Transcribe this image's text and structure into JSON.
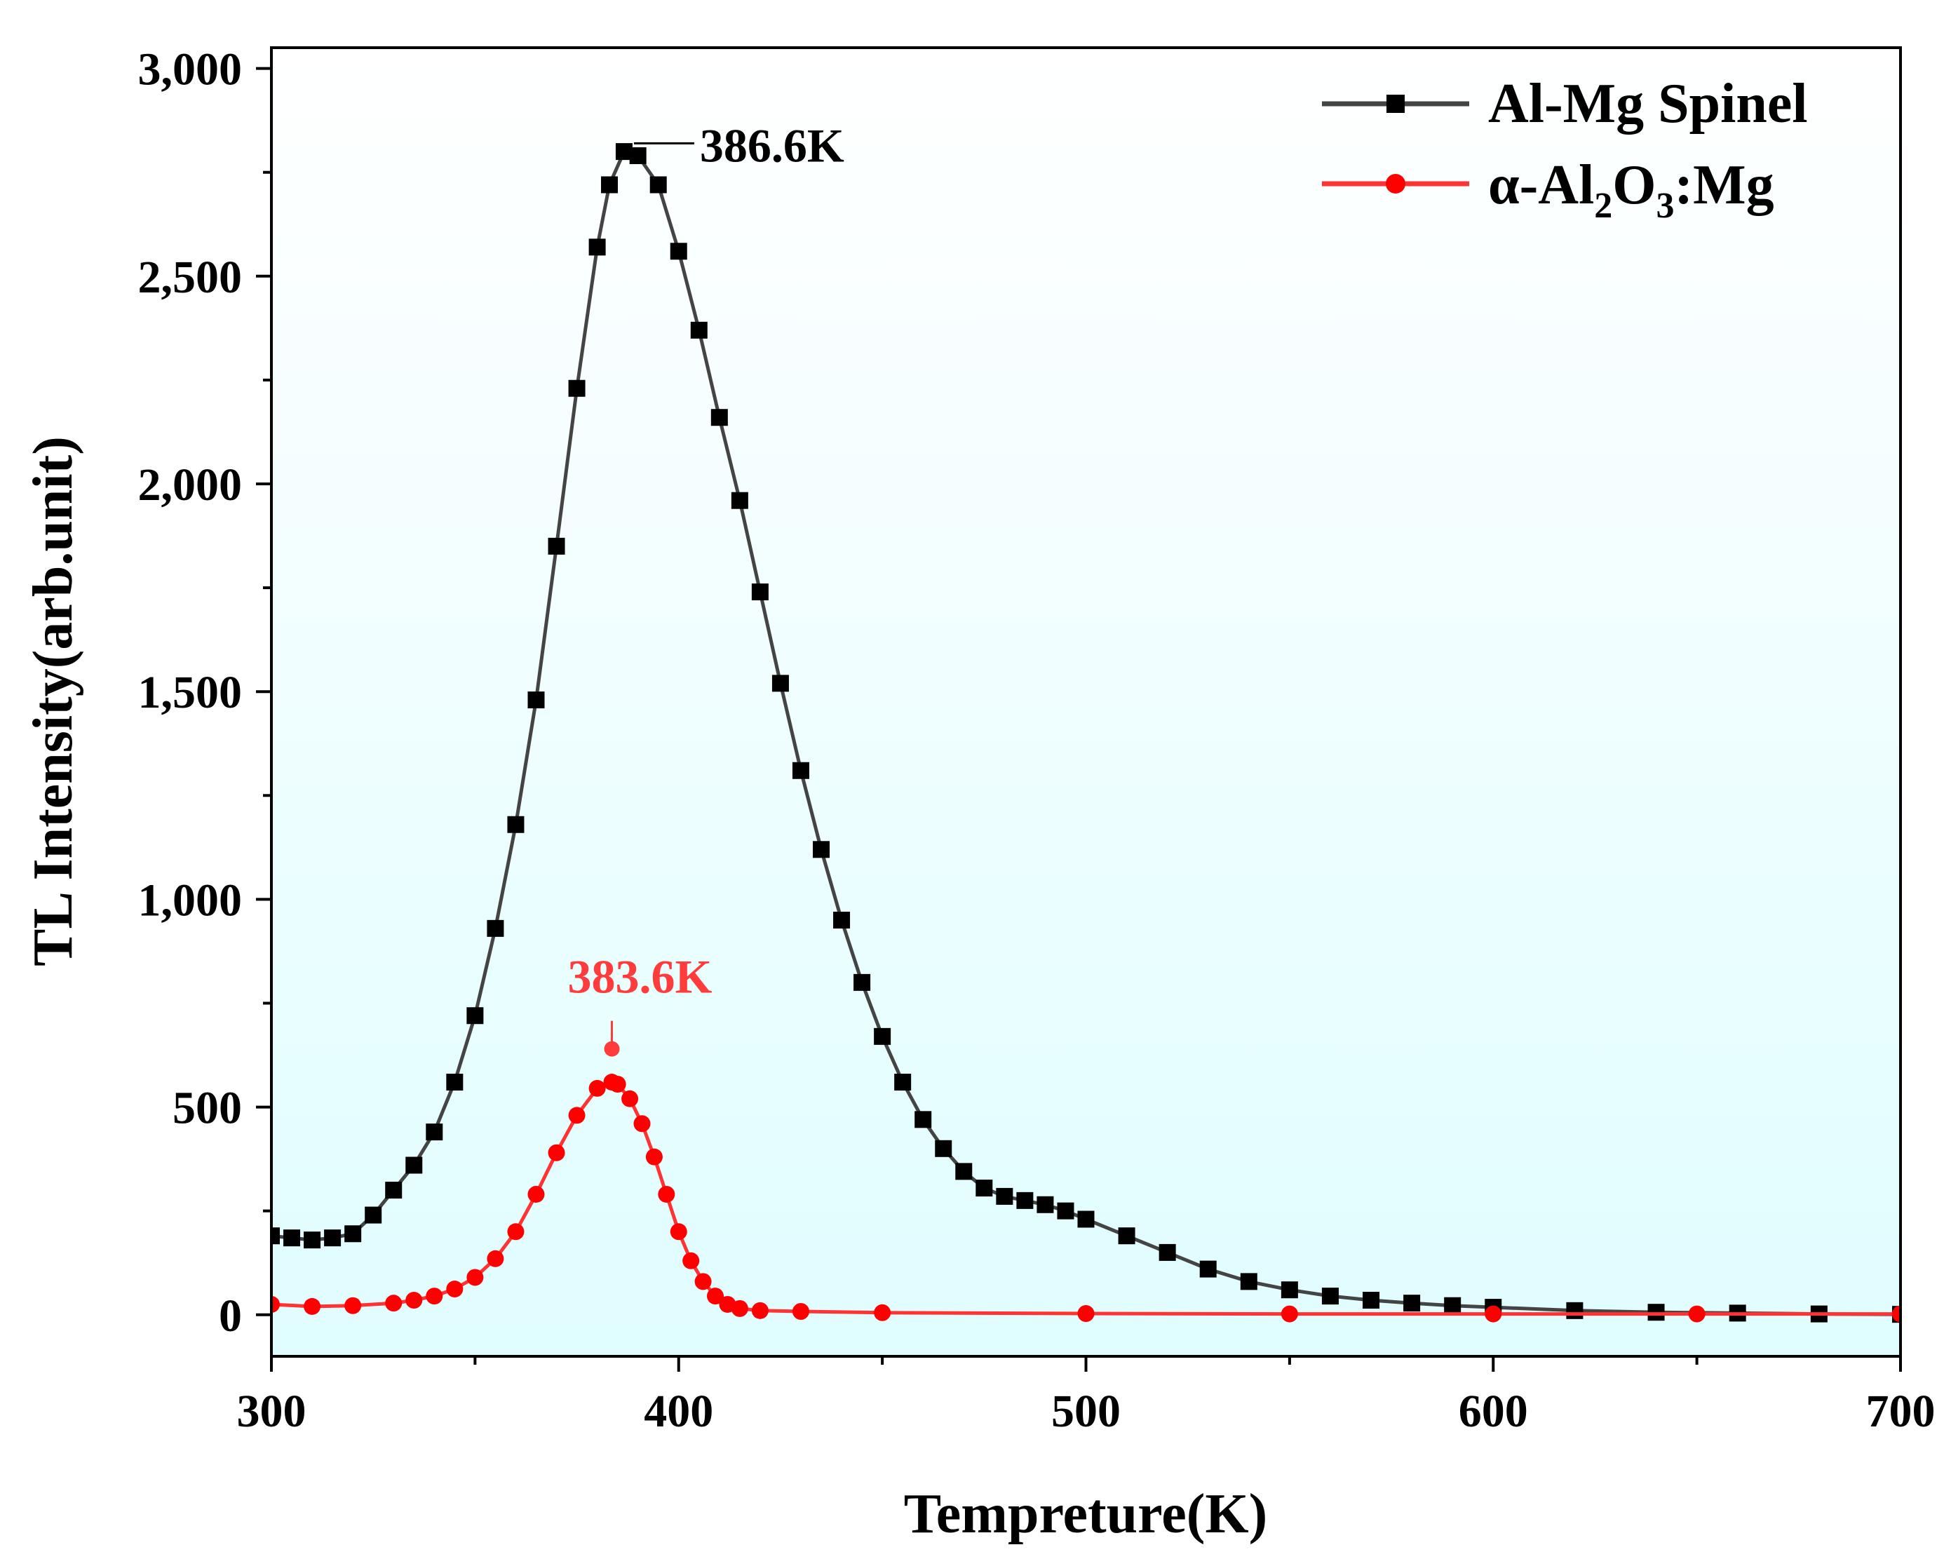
{
  "chart_data": {
    "type": "scatter",
    "title": "",
    "xlabel": "Tempreture(K)",
    "ylabel": "TL Intensity(arb.unit)",
    "xlim": [
      300,
      700
    ],
    "ylim": [
      -100,
      3050
    ],
    "x_ticks": [
      300,
      400,
      500,
      600,
      700
    ],
    "x_tick_labels": [
      "300",
      "400",
      "500",
      "600",
      "700"
    ],
    "y_ticks": [
      0,
      500,
      1000,
      1500,
      2000,
      2500,
      3000
    ],
    "y_tick_labels": [
      "0",
      "500",
      "1,000",
      "1,500",
      "2,000",
      "2,500",
      "3,000"
    ],
    "x_minor_step": 50,
    "y_minor_step": 250,
    "grid": false,
    "plot_background": [
      "#ffffff",
      "#e0fdff"
    ],
    "legend_position": "top-right",
    "series": [
      {
        "name": "Al-Mg Spinel",
        "legend_label": "Al-Mg Spinel",
        "color": "#000000",
        "line_color": "#444444",
        "marker": "square",
        "x": [
          300,
          305,
          310,
          315,
          320,
          325,
          330,
          335,
          340,
          345,
          350,
          355,
          360,
          365,
          370,
          375,
          380,
          383,
          386.6,
          390,
          395,
          400,
          405,
          410,
          415,
          420,
          425,
          430,
          435,
          440,
          445,
          450,
          455,
          460,
          465,
          470,
          475,
          480,
          485,
          490,
          495,
          500,
          510,
          520,
          530,
          540,
          550,
          560,
          570,
          580,
          590,
          600,
          620,
          640,
          660,
          680,
          700
        ],
        "values": [
          190,
          185,
          180,
          185,
          195,
          240,
          300,
          360,
          440,
          560,
          720,
          930,
          1180,
          1480,
          1850,
          2230,
          2570,
          2720,
          2800,
          2790,
          2720,
          2560,
          2370,
          2160,
          1960,
          1740,
          1520,
          1310,
          1120,
          950,
          800,
          670,
          560,
          470,
          400,
          345,
          305,
          285,
          275,
          265,
          250,
          230,
          190,
          150,
          110,
          80,
          60,
          45,
          35,
          28,
          22,
          18,
          10,
          6,
          4,
          2,
          1
        ]
      },
      {
        "name": "α-Al2O3:Mg",
        "legend_label": "α-Al",
        "legend_sub1": "2",
        "legend_mid": "O",
        "legend_sub2": "3",
        "legend_tail": ":Mg",
        "color": "#ff0000",
        "line_color": "#ff3333",
        "marker": "circle",
        "x": [
          300,
          310,
          320,
          330,
          335,
          340,
          345,
          350,
          355,
          360,
          365,
          370,
          375,
          380,
          383.6,
          385,
          388,
          391,
          394,
          397,
          400,
          403,
          406,
          409,
          412,
          415,
          420,
          430,
          450,
          500,
          550,
          600,
          650,
          700
        ],
        "values": [
          25,
          20,
          22,
          28,
          35,
          45,
          62,
          90,
          135,
          200,
          290,
          390,
          480,
          545,
          560,
          555,
          520,
          460,
          380,
          290,
          200,
          130,
          80,
          45,
          25,
          15,
          10,
          8,
          5,
          3,
          2,
          2,
          2,
          2
        ]
      }
    ],
    "annotations": [
      {
        "text": "386.6K",
        "x": 386.6,
        "y": 2840,
        "color": "#000000"
      },
      {
        "text": "383.6K",
        "x": 383.6,
        "y": 640,
        "color": "#ff3b3b"
      }
    ]
  }
}
